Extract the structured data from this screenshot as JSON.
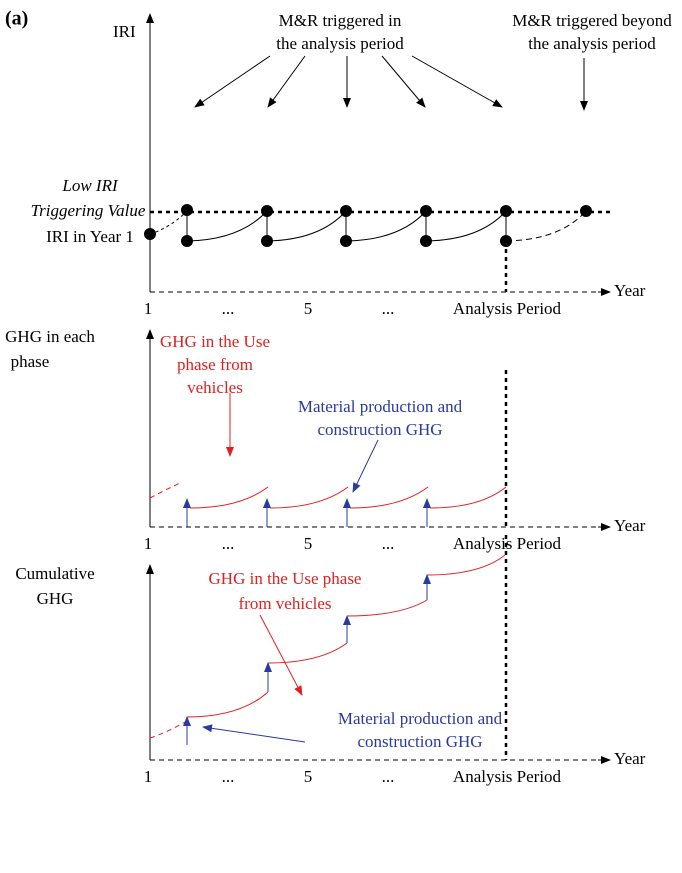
{
  "label": "(a)",
  "panels": [
    {
      "y_label": [
        "IRI"
      ],
      "x_axis_label": "Year",
      "x_labels": [
        "1",
        "...",
        "5",
        "...",
        "Analysis Period"
      ],
      "notes": {
        "in_period": [
          "M&R triggered in",
          "the analysis period"
        ],
        "beyond_period": [
          "M&R triggered beyond",
          "the analysis period"
        ],
        "trigger": [
          "Low IRI",
          "Triggering Value"
        ],
        "year1": "IRI in Year 1"
      }
    },
    {
      "y_label": [
        "GHG in each",
        "phase"
      ],
      "x_axis_label": "Year",
      "x_labels": [
        "1",
        "...",
        "5",
        "...",
        "Analysis Period"
      ],
      "use_note": [
        "GHG in the Use",
        "phase from",
        "vehicles"
      ],
      "material_note": [
        "Material production and",
        "construction GHG"
      ]
    },
    {
      "y_label": [
        "Cumulative",
        "GHG"
      ],
      "x_axis_label": "Year",
      "x_labels": [
        "1",
        "...",
        "5",
        "...",
        "Analysis Period"
      ],
      "use_note": [
        "GHG in the Use phase",
        "from vehicles"
      ],
      "material_note": [
        "Material production and",
        "construction GHG"
      ]
    }
  ]
}
